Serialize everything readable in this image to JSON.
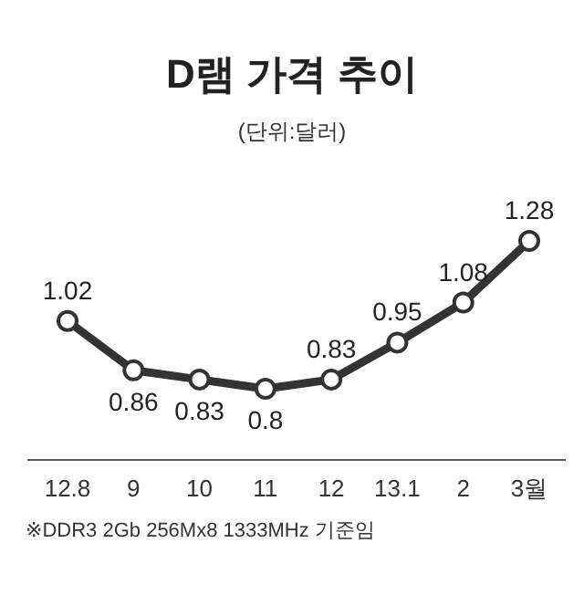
{
  "chart_data": {
    "type": "line",
    "title": "D램 가격 추이",
    "subtitle": "(단위:달러)",
    "categories": [
      "12.8",
      "9",
      "10",
      "11",
      "12",
      "13.1",
      "2",
      "3월"
    ],
    "values": [
      1.02,
      0.86,
      0.83,
      0.8,
      0.83,
      0.95,
      1.08,
      1.28
    ],
    "color": "#333333",
    "marker": "circle",
    "data_labels": true,
    "annotations": [
      "※DDR3 2Gb 256Mx8 1333MHz 기준임"
    ]
  }
}
